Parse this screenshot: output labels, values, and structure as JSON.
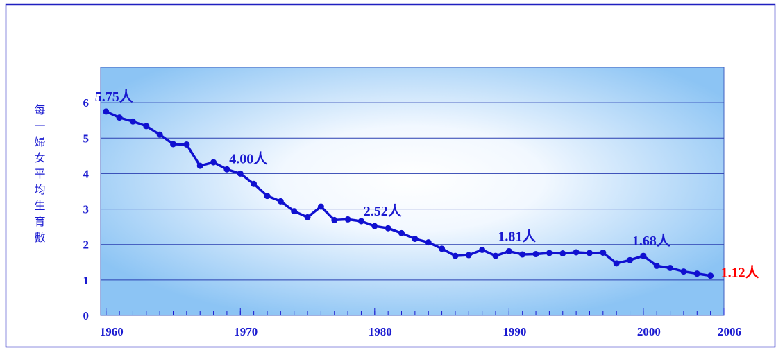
{
  "chart_data": {
    "type": "line",
    "y_label": "每一婦女平均生育數",
    "x": [
      1960,
      1961,
      1962,
      1963,
      1964,
      1965,
      1966,
      1967,
      1968,
      1969,
      1970,
      1971,
      1972,
      1973,
      1974,
      1975,
      1976,
      1977,
      1978,
      1979,
      1980,
      1981,
      1982,
      1983,
      1984,
      1985,
      1986,
      1987,
      1988,
      1989,
      1990,
      1991,
      1992,
      1993,
      1994,
      1995,
      1996,
      1997,
      1998,
      1999,
      2000,
      2001,
      2002,
      2003,
      2004,
      2005
    ],
    "values": [
      5.75,
      5.58,
      5.47,
      5.34,
      5.1,
      4.83,
      4.82,
      4.22,
      4.32,
      4.12,
      4.0,
      3.71,
      3.37,
      3.22,
      2.94,
      2.77,
      3.07,
      2.69,
      2.71,
      2.66,
      2.52,
      2.46,
      2.32,
      2.16,
      2.06,
      1.88,
      1.68,
      1.7,
      1.85,
      1.68,
      1.81,
      1.72,
      1.73,
      1.76,
      1.75,
      1.78,
      1.76,
      1.77,
      1.47,
      1.56,
      1.68,
      1.4,
      1.34,
      1.24,
      1.18,
      1.12
    ],
    "value_labels": [
      "5.75人",
      null,
      null,
      null,
      null,
      null,
      null,
      null,
      null,
      null,
      "4.00人",
      null,
      null,
      null,
      null,
      null,
      null,
      null,
      null,
      null,
      "2.52人",
      null,
      null,
      null,
      null,
      null,
      null,
      null,
      null,
      null,
      "1.81人",
      null,
      null,
      null,
      null,
      null,
      null,
      null,
      null,
      null,
      "1.68人",
      null,
      null,
      null,
      null,
      "1.12人"
    ],
    "color": "#1010d0",
    "label_color": "#1a1ad0",
    "last_label_color": "#ff0000",
    "xlim": [
      1959.6,
      2006
    ],
    "xticks": [
      1960,
      1970,
      1980,
      1990,
      2000,
      2006
    ],
    "ylim": [
      0,
      7
    ],
    "yticks": [
      0,
      1,
      2,
      3,
      4,
      5,
      6
    ],
    "grid": true
  }
}
